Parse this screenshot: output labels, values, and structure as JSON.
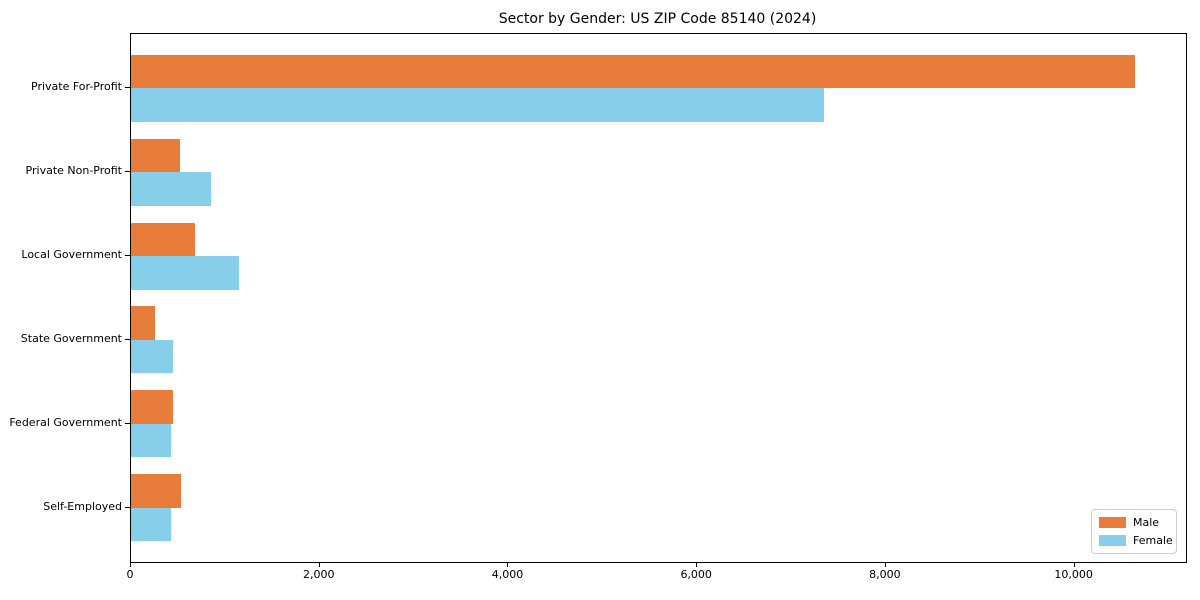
{
  "title": "Sector by Gender: US ZIP Code 85140 (2024)",
  "colors": {
    "male": "#e87d3b",
    "female": "#87ceeb",
    "axis": "#000000",
    "legend_border": "#cccccc",
    "background": "#ffffff"
  },
  "chart_data": {
    "type": "bar",
    "orientation": "horizontal",
    "title": "Sector by Gender: US ZIP Code 85140 (2024)",
    "categories": [
      "Private For-Profit",
      "Private Non-Profit",
      "Local Government",
      "State Government",
      "Federal Government",
      "Self-Employed"
    ],
    "series": [
      {
        "name": "Male",
        "color": "#e87d3b",
        "values": [
          10640,
          520,
          680,
          250,
          440,
          525
        ]
      },
      {
        "name": "Female",
        "color": "#87ceeb",
        "values": [
          7340,
          850,
          1140,
          450,
          425,
          425
        ]
      }
    ],
    "xlabel": "",
    "ylabel": "",
    "xlim": [
      0,
      11180
    ],
    "xticks": [
      0,
      2000,
      4000,
      6000,
      8000,
      10000
    ],
    "xtick_labels": [
      "0",
      "2,000",
      "4,000",
      "6,000",
      "8,000",
      "10,000"
    ],
    "legend": {
      "entries": [
        "Male",
        "Female"
      ],
      "position": "lower right"
    },
    "grid": false,
    "bar_group_fraction": 0.8
  }
}
